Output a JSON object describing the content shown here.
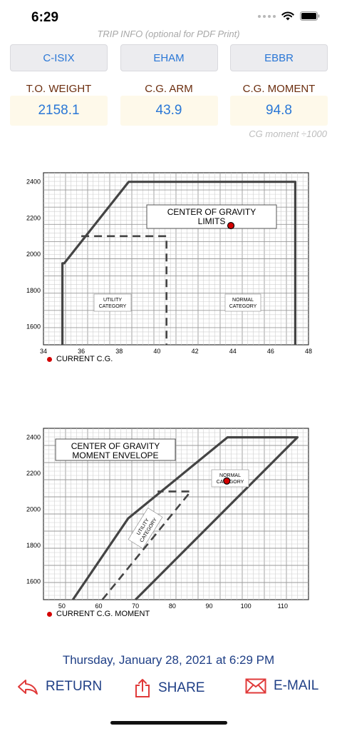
{
  "status": {
    "time": "6:29"
  },
  "trip_info": "TRIP INFO (optional for PDF Print)",
  "airports": [
    "C-ISIX",
    "EHAM",
    "EBBR"
  ],
  "metrics": {
    "weight_label": "T.O. WEIGHT",
    "arm_label": "C.G. ARM",
    "moment_label": "C.G. MOMENT",
    "weight_value": "2158.1",
    "arm_value": "43.9",
    "moment_value": "94.8"
  },
  "cg_note": "CG moment  ÷1000",
  "chart_data": [
    {
      "type": "line",
      "title": "CENTER OF GRAVITY LIMITS",
      "xlim": [
        34,
        48
      ],
      "ylim": [
        1500,
        2450
      ],
      "x_ticks": [
        34,
        36,
        38,
        40,
        42,
        44,
        46,
        48
      ],
      "y_ticks": [
        1600,
        1800,
        2000,
        2200,
        2400
      ],
      "annotations": [
        "UTILITY CATEGORY",
        "NORMAL CATEGORY"
      ],
      "normal_envelope": {
        "x": [
          35,
          35,
          35.1,
          38.5,
          47.3,
          47.3
        ],
        "y": [
          1500,
          1950,
          1950,
          2400,
          2400,
          1500
        ]
      },
      "utility_envelope": {
        "x": [
          36,
          40.5,
          40.5
        ],
        "y": [
          2100,
          2100,
          1500
        ]
      },
      "current_cg": {
        "x": 43.9,
        "y": 2158.1
      },
      "legend": "CURRENT C.G."
    },
    {
      "type": "line",
      "title": "CENTER OF GRAVITY MOMENT ENVELOPE",
      "xlim": [
        45,
        117
      ],
      "ylim": [
        1500,
        2450
      ],
      "x_ticks": [
        50,
        60,
        70,
        80,
        90,
        100,
        110
      ],
      "y_ticks": [
        1600,
        1800,
        2000,
        2200,
        2400
      ],
      "annotations": [
        "UTILITY CATEGORY",
        "NORMAL CATEGORY"
      ],
      "normal_envelope": {
        "x": [
          53,
          68,
          95,
          114,
          70
        ],
        "y": [
          1500,
          1950,
          2400,
          2400,
          1500
        ]
      },
      "utility_envelope": {
        "x": [
          61,
          85,
          76
        ],
        "y": [
          1500,
          2100,
          2100
        ]
      },
      "current_cg": {
        "x": 94.8,
        "y": 2158.1
      },
      "legend": "CURRENT C.G. MOMENT"
    }
  ],
  "date_line": "Thursday, January 28, 2021 at 6:29 PM",
  "actions": {
    "return_label": "RETURN",
    "share_label": "SHARE",
    "email_label": "E-MAIL"
  },
  "colors": {
    "accent": "#2a77d6",
    "dark_blue": "#1f3f86",
    "label_brown": "#6b2d0e",
    "action_red": "#e03a3a",
    "cg_dot": "#d40000"
  }
}
